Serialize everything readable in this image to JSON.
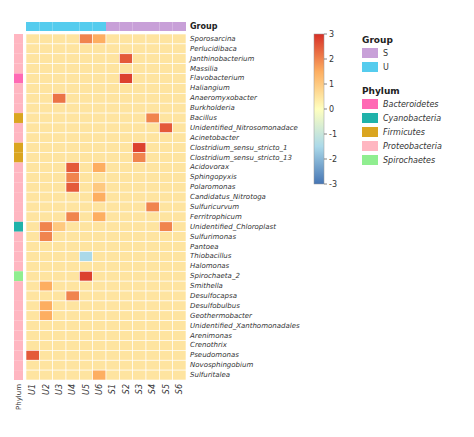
{
  "chart_data": {
    "type": "heatmap",
    "categories": [
      "U1",
      "U2",
      "U3",
      "U4",
      "U5",
      "U6",
      "S1",
      "S2",
      "S3",
      "S4",
      "S5",
      "S6"
    ],
    "rows": [
      "Sporosarcina",
      "Perlucidibaca",
      "Janthinobacterium",
      "Massilia",
      "Flavobacterium",
      "Haliangium",
      "Anaeromyxobacter",
      "Burkholderia",
      "Bacillus",
      "Unidentified_Nitrosomonadace",
      "Acinetobacter",
      "Clostridium_sensu_stricto_1",
      "Clostridium_sensu_stricto_13",
      "Acidovorax",
      "Sphingopyxis",
      "Polaromonas",
      "Candidatus_Nitrotoga",
      "Sulfuricurvum",
      "Ferritrophicum",
      "Unidentified_Chloroplast",
      "Sulfurimonas",
      "Pantoea",
      "Thiobacillus",
      "Halomonas",
      "Spirochaeta_2",
      "Smithella",
      "Desulfocapsa",
      "Desulfobulbus",
      "Geothermobacter",
      "Unidentified_Xanthomonadales",
      "Arenimonas",
      "Crenothrix",
      "Pseudomonas",
      "Novosphingobium",
      "Sulfuritalea"
    ],
    "values": [
      [
        0.5,
        0.5,
        0.5,
        0.5,
        2.0,
        1.5,
        0.5,
        0.5,
        0.5,
        0.5,
        0.5,
        0.5
      ],
      [
        0.5,
        0.5,
        0.5,
        0.5,
        0.5,
        0.5,
        0.5,
        0.5,
        0.5,
        0.5,
        0.5,
        0.5
      ],
      [
        0.5,
        0.5,
        0.5,
        0.5,
        0.5,
        0.5,
        0.5,
        2.5,
        0.5,
        0.5,
        0.5,
        0.5
      ],
      [
        0.5,
        0.5,
        0.5,
        0.5,
        0.5,
        0.5,
        0.5,
        0.5,
        0.5,
        0.5,
        0.5,
        0.5
      ],
      [
        0.5,
        0.5,
        0.5,
        0.5,
        0.5,
        0.5,
        0.5,
        2.8,
        0.5,
        0.5,
        0.5,
        0.5
      ],
      [
        0.5,
        0.5,
        0.5,
        0.5,
        0.5,
        0.5,
        0.5,
        0.5,
        0.5,
        0.5,
        0.5,
        0.5
      ],
      [
        0.5,
        0.5,
        2.2,
        0.5,
        0.5,
        0.5,
        0.5,
        0.5,
        0.5,
        0.5,
        0.5,
        0.5
      ],
      [
        0.5,
        0.5,
        0.5,
        0.5,
        0.5,
        0.5,
        0.5,
        0.5,
        0.5,
        0.5,
        0.5,
        0.5
      ],
      [
        0.5,
        0.5,
        0.5,
        0.5,
        0.5,
        0.5,
        0.5,
        0.5,
        0.5,
        2.0,
        0.5,
        0.5
      ],
      [
        0.5,
        0.5,
        0.5,
        0.5,
        0.5,
        0.5,
        0.5,
        0.5,
        0.5,
        0.5,
        2.5,
        0.5
      ],
      [
        0.5,
        0.5,
        0.5,
        0.5,
        0.5,
        0.5,
        0.5,
        0.5,
        0.5,
        0.5,
        0.5,
        0.5
      ],
      [
        0.5,
        0.5,
        0.5,
        0.5,
        0.5,
        0.5,
        0.5,
        0.5,
        2.8,
        0.5,
        0.5,
        0.5
      ],
      [
        0.5,
        0.5,
        0.5,
        0.5,
        0.5,
        0.5,
        0.5,
        0.5,
        2.0,
        0.5,
        0.5,
        0.5
      ],
      [
        0.5,
        0.5,
        0.5,
        2.5,
        0.5,
        1.5,
        0.5,
        0.5,
        0.5,
        0.5,
        0.5,
        0.5
      ],
      [
        0.5,
        0.5,
        0.5,
        2.0,
        0.5,
        0.5,
        0.5,
        0.5,
        0.5,
        0.5,
        0.5,
        0.5
      ],
      [
        0.5,
        0.5,
        0.5,
        2.5,
        0.5,
        1.0,
        0.5,
        0.5,
        0.5,
        0.5,
        0.5,
        0.5
      ],
      [
        0.5,
        0.5,
        0.5,
        0.5,
        0.5,
        1.5,
        0.5,
        0.5,
        0.5,
        0.5,
        0.5,
        0.5
      ],
      [
        0.5,
        0.5,
        0.5,
        0.5,
        0.5,
        0.5,
        0.5,
        0.5,
        0.5,
        2.0,
        0.5,
        0.5
      ],
      [
        0.5,
        0.5,
        0.5,
        2.0,
        0.5,
        1.5,
        0.5,
        0.5,
        0.5,
        0.5,
        0.5,
        0.5
      ],
      [
        0.5,
        2.0,
        1.0,
        0.5,
        0.5,
        0.5,
        0.5,
        0.5,
        0.5,
        0.5,
        2.0,
        0.5
      ],
      [
        0.5,
        2.0,
        0.5,
        0.5,
        0.5,
        0.5,
        0.5,
        0.5,
        0.5,
        0.5,
        0.5,
        0.5
      ],
      [
        0.5,
        0.5,
        0.5,
        0.5,
        0.5,
        0.5,
        0.5,
        0.5,
        0.5,
        0.5,
        0.5,
        0.5
      ],
      [
        0.5,
        0.5,
        0.5,
        0.5,
        -1.5,
        0.5,
        0.5,
        0.5,
        0.5,
        0.5,
        0.5,
        0.5
      ],
      [
        0.5,
        0.5,
        0.5,
        0.5,
        0.5,
        0.5,
        0.5,
        0.5,
        0.5,
        0.5,
        0.5,
        0.5
      ],
      [
        0.5,
        0.5,
        0.5,
        0.5,
        2.8,
        0.5,
        0.5,
        0.5,
        0.5,
        0.5,
        0.5,
        0.5
      ],
      [
        0.5,
        1.5,
        0.5,
        0.5,
        0.5,
        0.5,
        0.5,
        0.5,
        0.5,
        0.5,
        0.5,
        0.5
      ],
      [
        0.5,
        0.5,
        0.5,
        2.0,
        0.5,
        0.5,
        0.5,
        0.5,
        0.5,
        0.5,
        0.5,
        0.5
      ],
      [
        0.5,
        1.5,
        0.5,
        0.5,
        0.5,
        0.5,
        0.5,
        0.5,
        0.5,
        0.5,
        0.5,
        0.5
      ],
      [
        0.5,
        1.5,
        0.5,
        0.5,
        0.5,
        0.5,
        0.5,
        0.5,
        0.5,
        0.5,
        0.5,
        0.5
      ],
      [
        0.5,
        0.5,
        0.5,
        0.5,
        0.5,
        0.5,
        0.5,
        0.5,
        0.5,
        0.5,
        0.5,
        0.5
      ],
      [
        0.5,
        0.5,
        0.5,
        0.5,
        0.5,
        0.5,
        0.5,
        0.5,
        0.5,
        0.5,
        0.5,
        0.5
      ],
      [
        0.5,
        0.5,
        0.5,
        0.5,
        0.5,
        0.5,
        0.5,
        0.5,
        0.5,
        0.5,
        0.5,
        0.5
      ],
      [
        2.5,
        0.5,
        0.5,
        0.5,
        0.5,
        0.5,
        0.5,
        0.5,
        0.5,
        0.5,
        0.5,
        0.5
      ],
      [
        0.5,
        0.5,
        0.5,
        0.5,
        0.5,
        0.5,
        0.5,
        0.5,
        0.5,
        0.5,
        0.5,
        0.5
      ],
      [
        0.5,
        0.5,
        0.5,
        0.5,
        0.5,
        1.5,
        0.5,
        0.5,
        0.5,
        0.5,
        0.5,
        0.5
      ]
    ],
    "grid": true,
    "colorbar": {
      "range": [
        -3,
        3
      ],
      "ticks": [
        -3,
        -2,
        -1,
        0,
        1,
        2,
        3
      ],
      "colors": [
        "#4575b4",
        "#ABD9E9",
        "#FFFFBF",
        "#FDAE61",
        "#D73027"
      ]
    },
    "column_annotation": {
      "label": "Group",
      "colors": [
        "#55CCEE",
        "#55CCEE",
        "#55CCEE",
        "#55CCEE",
        "#55CCEE",
        "#55CCEE",
        "#C8A0D8",
        "#C8A0D8",
        "#C8A0D8",
        "#C8A0D8",
        "#C8A0D8",
        "#C8A0D8"
      ]
    },
    "row_annotation": {
      "label": "Phylum",
      "colors": [
        "#FFB6C1",
        "#FFB6C1",
        "#FFB6C1",
        "#FFB6C1",
        "#FF69B4",
        "#FFB6C1",
        "#FFB6C1",
        "#FFB6C1",
        "#DAA520",
        "#FFB6C1",
        "#FFB6C1",
        "#DAA520",
        "#DAA520",
        "#FFB6C1",
        "#FFB6C1",
        "#FFB6C1",
        "#FFB6C1",
        "#FFB6C1",
        "#FFB6C1",
        "#20B2AA",
        "#FFB6C1",
        "#FFB6C1",
        "#FFB6C1",
        "#FFB6C1",
        "#90EE90",
        "#FFB6C1",
        "#FFB6C1",
        "#FFB6C1",
        "#FFB6C1",
        "#FFB6C1",
        "#FFB6C1",
        "#FFB6C1",
        "#FFB6C1",
        "#FFB6C1",
        "#FFB6C1"
      ]
    },
    "legends": [
      {
        "title": "Group",
        "entries": [
          {
            "name": "S",
            "color": "#C8A0D8"
          },
          {
            "name": "U",
            "color": "#55CCEE"
          }
        ]
      },
      {
        "title": "Phylum",
        "entries": [
          {
            "name": "Bacteroidetes",
            "color": "#FF69B4"
          },
          {
            "name": "Cyanobacteria",
            "color": "#20B2AA"
          },
          {
            "name": "Firmicutes",
            "color": "#DAA520"
          },
          {
            "name": "Proteobacteria",
            "color": "#FFB6C1"
          },
          {
            "name": "Spirochaetes",
            "color": "#90EE90"
          }
        ]
      }
    ]
  }
}
